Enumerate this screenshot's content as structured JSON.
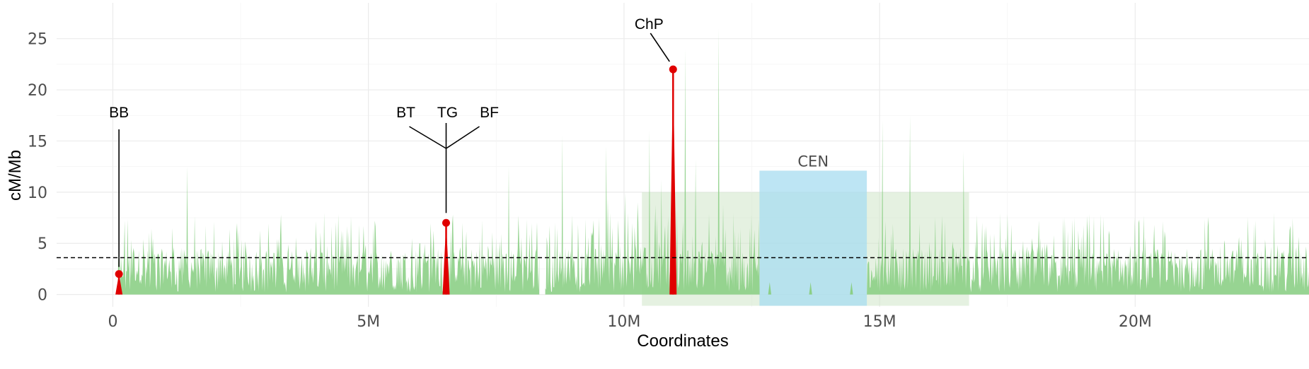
{
  "chart_data": {
    "type": "area",
    "xlabel": "Coordinates",
    "ylabel": "cM/Mb",
    "xlim": [
      -1100000,
      23400000
    ],
    "ylim": [
      -1.2,
      28.5
    ],
    "x_ticks": [
      {
        "value": 0,
        "label": "0"
      },
      {
        "value": 5000000,
        "label": "5M"
      },
      {
        "value": 10000000,
        "label": "10M"
      },
      {
        "value": 15000000,
        "label": "15M"
      },
      {
        "value": 20000000,
        "label": "20M"
      }
    ],
    "y_ticks": [
      {
        "value": 0,
        "label": "0"
      },
      {
        "value": 5,
        "label": "5"
      },
      {
        "value": 10,
        "label": "10"
      },
      {
        "value": 15,
        "label": "15"
      },
      {
        "value": 20,
        "label": "20"
      },
      {
        "value": 25,
        "label": "25"
      }
    ],
    "grid": true,
    "reference_line": {
      "y": 3.6,
      "style": "dashed"
    },
    "colors": {
      "recombination": "#8ccf86",
      "highlight": "#e00000",
      "pericentromere": "#cfe6c8",
      "centromere": "#a7dcf0",
      "grid": "#ebebeb"
    },
    "recombination_series": {
      "x_range": [
        100000,
        23400000
      ],
      "typical_max": 8,
      "notable_peaks": [
        {
          "x": 1450000,
          "y": 12.5
        },
        {
          "x": 7750000,
          "y": 12.5
        },
        {
          "x": 8800000,
          "y": 15.5
        },
        {
          "x": 9650000,
          "y": 14.5
        },
        {
          "x": 10500000,
          "y": 16
        },
        {
          "x": 11200000,
          "y": 24
        },
        {
          "x": 11850000,
          "y": 26
        },
        {
          "x": 15050000,
          "y": 17
        },
        {
          "x": 15600000,
          "y": 17.5
        },
        {
          "x": 16650000,
          "y": 14
        }
      ],
      "gaps": [
        [
          8350000,
          8450000
        ],
        [
          12650000,
          14750000
        ]
      ]
    },
    "regions": [
      {
        "name": "pericentromere",
        "x0": 10350000,
        "x1": 16750000,
        "y0": -1.1,
        "y1": 10
      },
      {
        "name": "centromere",
        "label": "CEN",
        "x0": 12650000,
        "x1": 14750000,
        "y0": -1.1,
        "y1": 12.1
      }
    ],
    "highlights": [
      {
        "labels": [
          "BB"
        ],
        "x": 120000,
        "y": 2
      },
      {
        "labels": [
          "BT",
          "TG",
          "BF"
        ],
        "x": 6520000,
        "y": 7
      },
      {
        "labels": [
          "ChP"
        ],
        "x": 10960000,
        "y": 22
      }
    ]
  }
}
